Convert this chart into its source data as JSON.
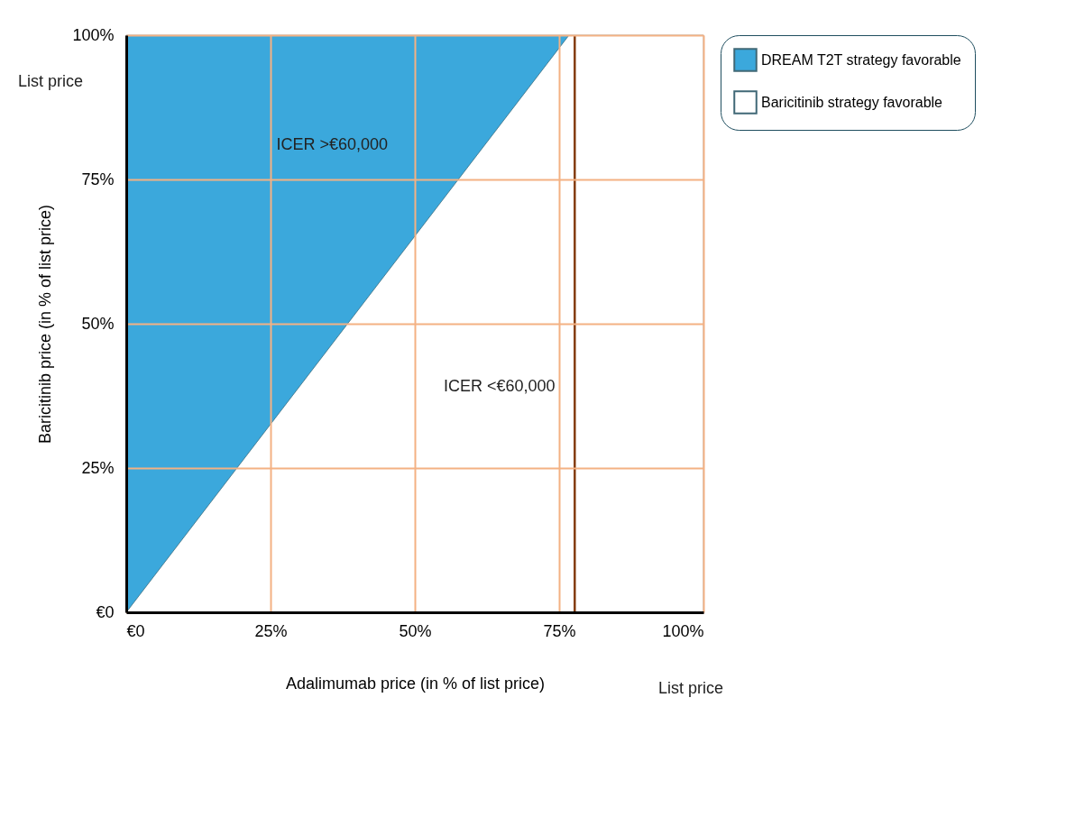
{
  "chart_data": {
    "type": "area",
    "xlabel": "Adalimumab price (in % of list price)",
    "ylabel": "Baricitinib price (in % of list price)",
    "xlim": [
      0,
      100
    ],
    "ylim": [
      0,
      100
    ],
    "xticks": [
      {
        "value": 0,
        "label": "€0"
      },
      {
        "value": 25,
        "label": "25%"
      },
      {
        "value": 50,
        "label": "50%"
      },
      {
        "value": 75,
        "label": "75%"
      },
      {
        "value": 100,
        "label": "100%"
      }
    ],
    "yticks": [
      {
        "value": 0,
        "label": "€0"
      },
      {
        "value": 25,
        "label": "25%"
      },
      {
        "value": 50,
        "label": "50%"
      },
      {
        "value": 75,
        "label": "75%"
      },
      {
        "value": 100,
        "label": "100%"
      }
    ],
    "x": [
      0,
      76.7,
      100
    ],
    "stacked": true,
    "series": [
      {
        "name": "Baricitinib strategy favorable",
        "color": "#ffffff",
        "values": [
          0,
          100,
          100
        ]
      },
      {
        "name": "DREAM T2T strategy favorable",
        "color": "#1a9ad6",
        "x": [
          0,
          76.7
        ],
        "values": [
          100,
          0
        ]
      }
    ],
    "ref_lines": [
      {
        "axis": "x",
        "value": 77.7,
        "color": "#843c0c"
      }
    ],
    "annotations": [
      "ICER >€60,000",
      "ICER <€60,000",
      "List price",
      "List price"
    ],
    "grid": true,
    "legend": "top right"
  }
}
